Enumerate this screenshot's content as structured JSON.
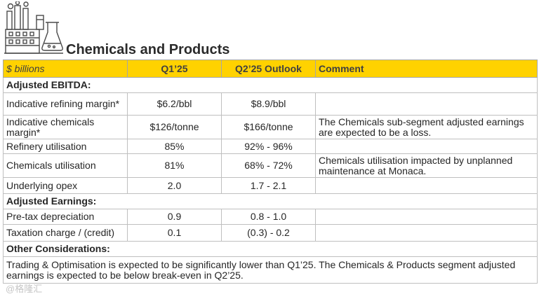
{
  "slide": {
    "title": "Chemicals and Products",
    "icon": "chemical-plant-icon",
    "accent_color": "#ffd200"
  },
  "table": {
    "headers": [
      "$ billions",
      "Q1’25",
      "Q2’25 Outlook",
      "Comment"
    ],
    "sections": {
      "ebitda": "Adjusted EBITDA:",
      "earnings": "Adjusted Earnings:",
      "other": "Other Considerations:"
    },
    "rows": [
      {
        "label": "Indicative refining margin*",
        "q1": "$6.2/bbl",
        "q2": "$8.9/bbl",
        "comment": ""
      },
      {
        "label": "Indicative chemicals margin*",
        "q1": "$126/tonne",
        "q2": "$166/tonne",
        "comment": "The Chemicals sub-segment adjusted earnings are expected to be a loss."
      },
      {
        "label": "Refinery utilisation",
        "q1": "85%",
        "q2": "92% - 96%",
        "comment": ""
      },
      {
        "label": "Chemicals utilisation",
        "q1": "81%",
        "q2": "68% - 72%",
        "comment": "Chemicals utilisation impacted by unplanned maintenance at Monaca."
      },
      {
        "label": "Underlying opex",
        "q1": "2.0",
        "q2": "1.7 - 2.1",
        "comment": ""
      },
      {
        "label": "Pre-tax depreciation",
        "q1": "0.9",
        "q2": "0.8 - 1.0",
        "comment": ""
      },
      {
        "label": "Taxation charge / (credit)",
        "q1": "0.1",
        "q2": "(0.3) - 0.2",
        "comment": ""
      }
    ],
    "other_text": "Trading & Optimisation is expected to be significantly lower than Q1’25. The Chemicals & Products segment adjusted earnings is expected to be below break-even in Q2’25."
  },
  "watermark": "@格隆汇"
}
